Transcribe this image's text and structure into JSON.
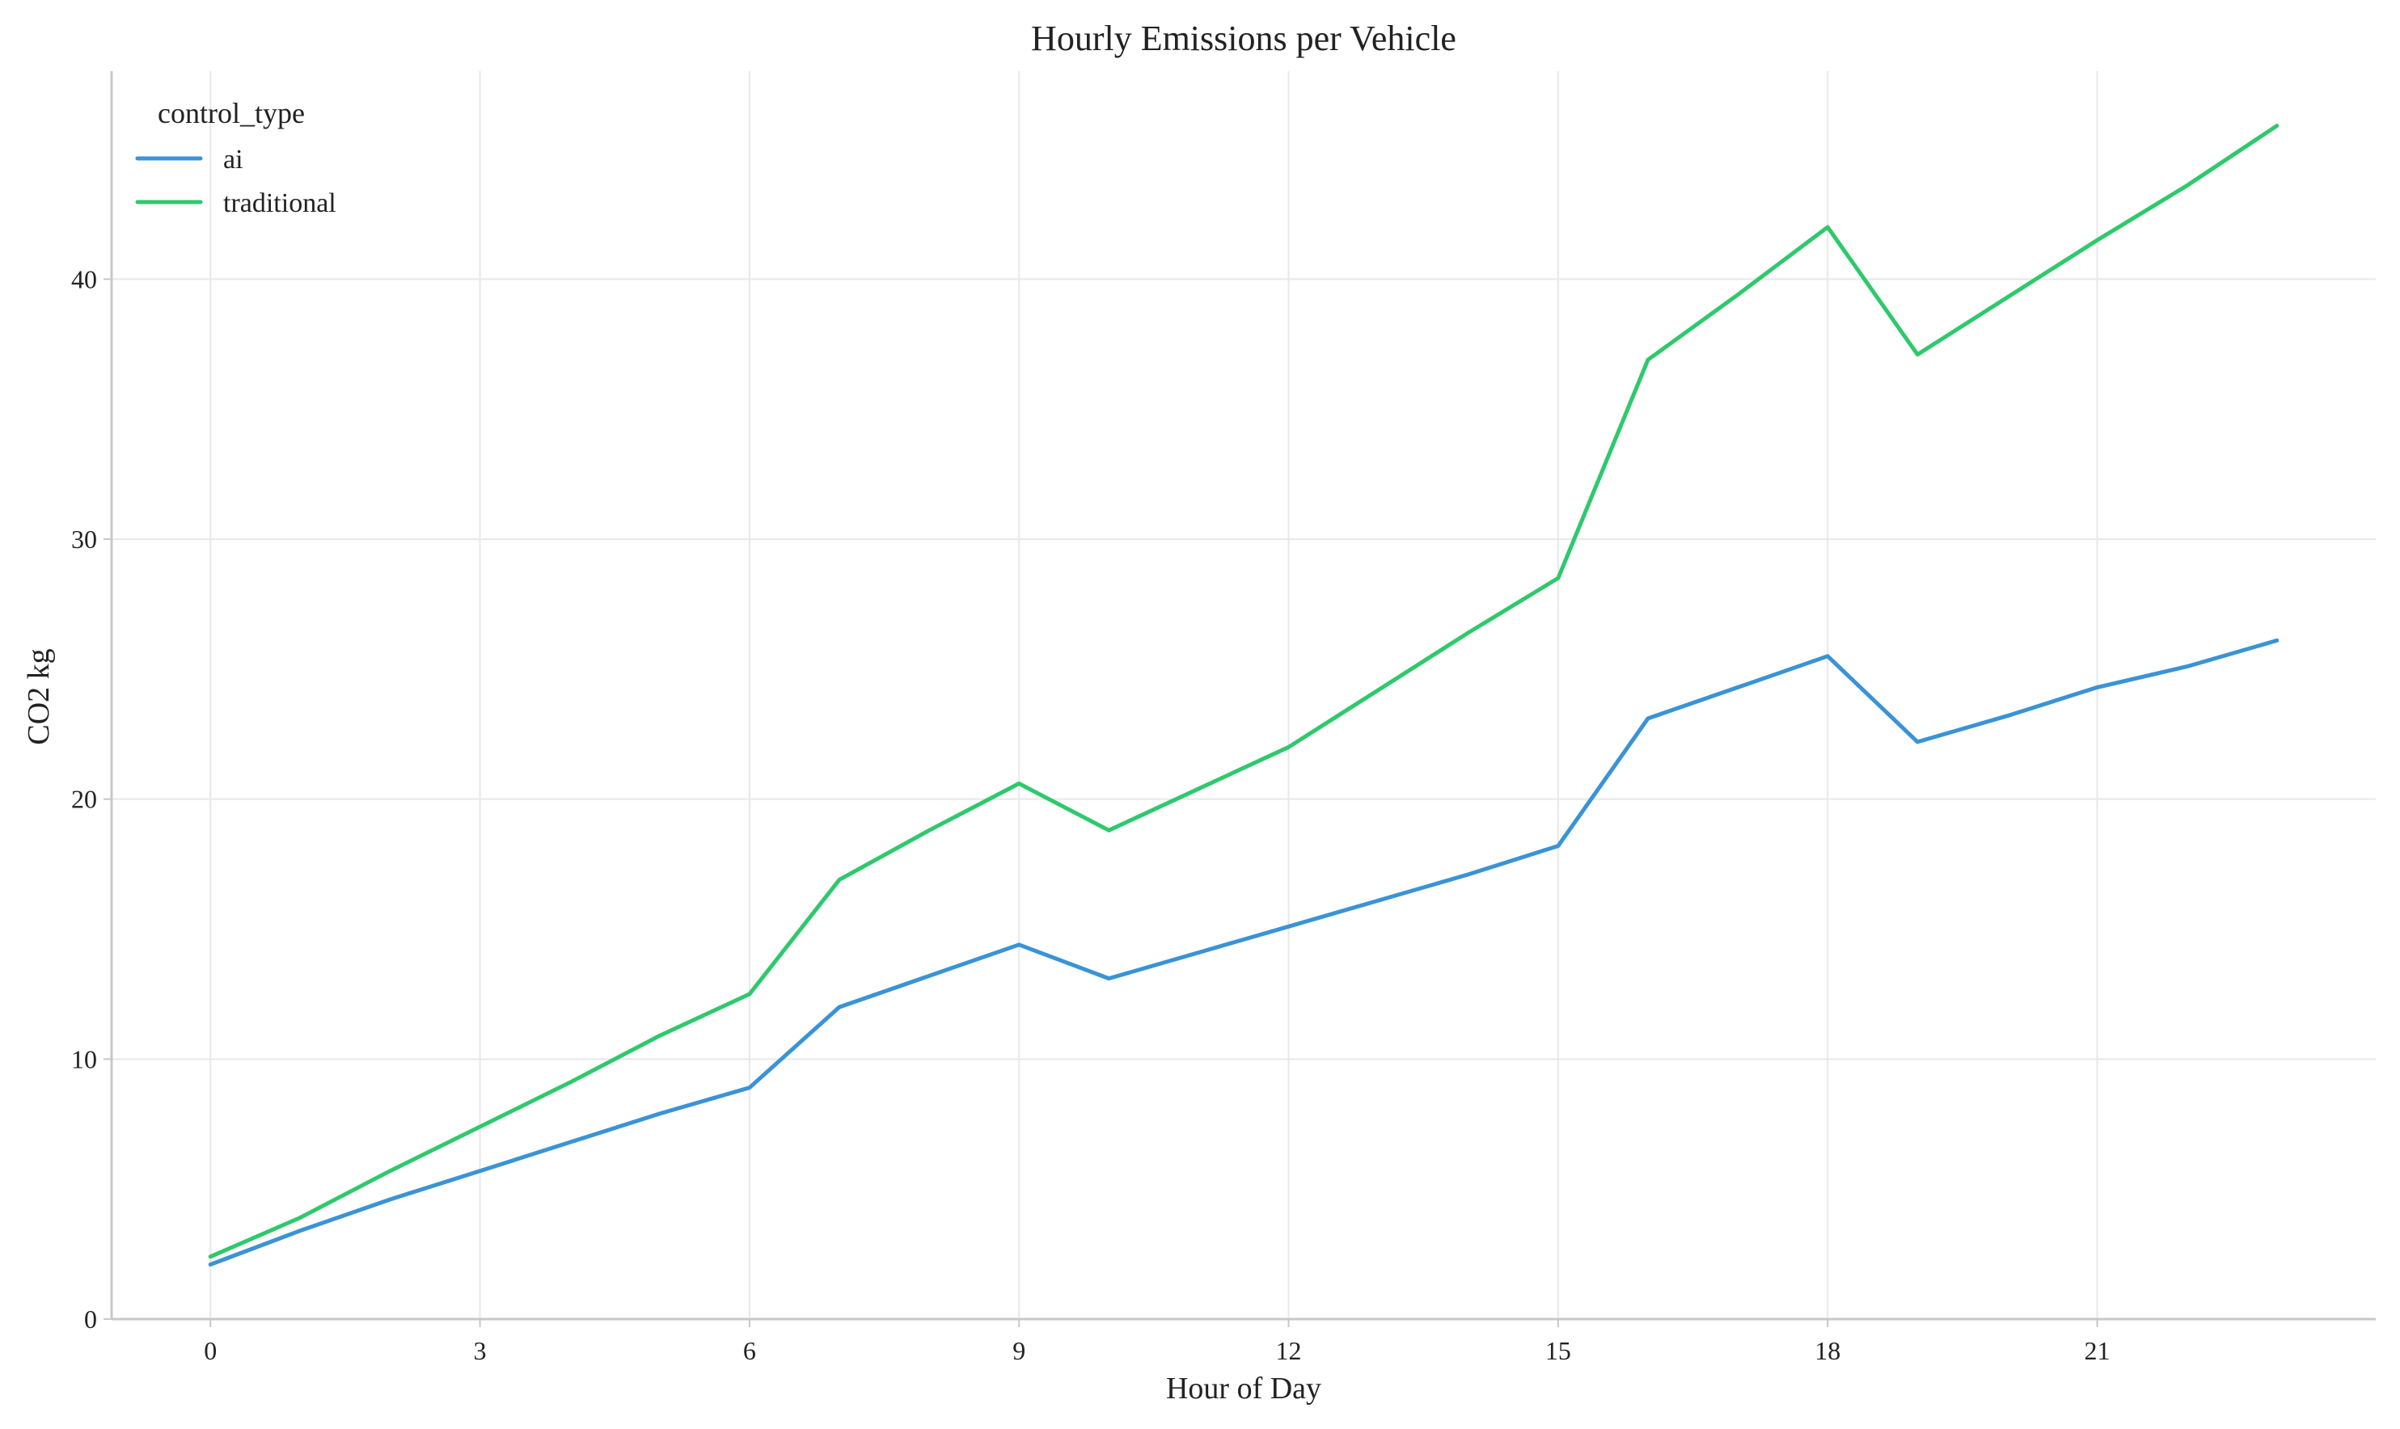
{
  "chart_data": {
    "type": "line",
    "title": "Hourly Emissions per Vehicle",
    "xlabel": "Hour of Day",
    "ylabel": "CO2 kg",
    "x": [
      0,
      1,
      2,
      3,
      4,
      5,
      6,
      7,
      8,
      9,
      10,
      11,
      12,
      13,
      14,
      15,
      16,
      17,
      18,
      19,
      20,
      21,
      22,
      23
    ],
    "xlim": [
      -1.1,
      24.1
    ],
    "ylim": [
      0,
      48
    ],
    "xticks": [
      0,
      3,
      6,
      9,
      12,
      15,
      18,
      21
    ],
    "yticks": [
      0,
      10,
      20,
      30,
      40
    ],
    "grid": true,
    "legend": {
      "title": "control_type",
      "placement": "top-left"
    },
    "series": [
      {
        "name": "ai",
        "color": "#3a93d6",
        "values": [
          2.1,
          3.4,
          4.6,
          5.7,
          6.8,
          7.9,
          8.9,
          12.0,
          13.2,
          14.4,
          13.1,
          14.1,
          15.1,
          16.1,
          17.1,
          18.2,
          23.1,
          24.3,
          25.5,
          22.2,
          23.2,
          24.3,
          25.1,
          26.1
        ]
      },
      {
        "name": "traditional",
        "color": "#2ec96c",
        "values": [
          2.4,
          3.9,
          5.7,
          7.4,
          9.1,
          10.9,
          12.5,
          16.9,
          18.8,
          20.6,
          18.8,
          20.4,
          22.0,
          24.2,
          26.4,
          28.5,
          36.9,
          39.4,
          42.0,
          37.1,
          39.3,
          41.5,
          43.6,
          45.9
        ]
      }
    ]
  }
}
